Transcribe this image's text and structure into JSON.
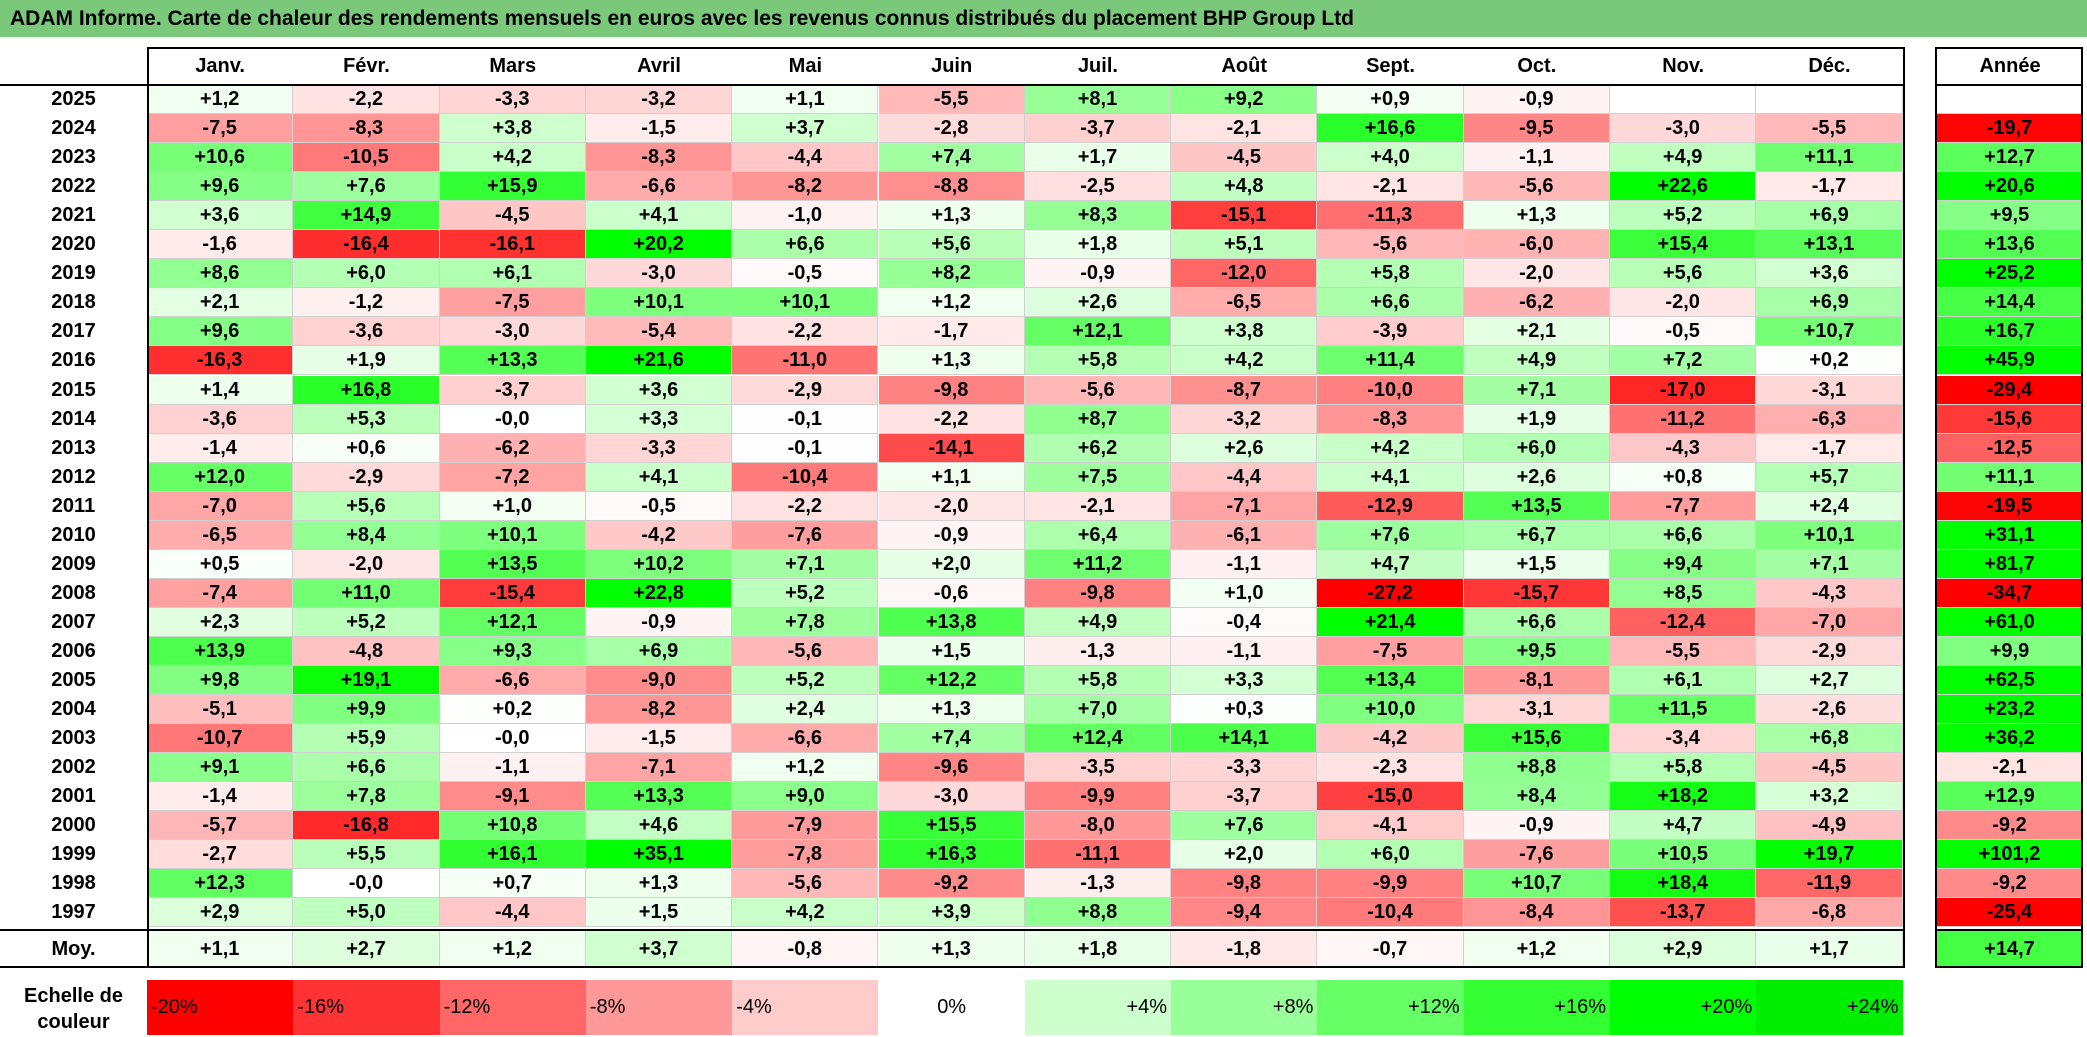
{
  "title": "ADAM Informe. Carte de chaleur des rendements mensuels en euros avec les revenus connus distribués du placement BHP Group Ltd",
  "chart_data": {
    "type": "heatmap",
    "title": "ADAM Informe. Carte de chaleur des rendements mensuels en euros avec les revenus connus distribués du placement BHP Group Ltd",
    "months": [
      "Janv.",
      "Févr.",
      "Mars",
      "Avril",
      "Mai",
      "Juin",
      "Juil.",
      "Août",
      "Sept.",
      "Oct.",
      "Nov.",
      "Déc."
    ],
    "year_header": "Année",
    "avg_label": "Moy.",
    "rows": [
      {
        "year": "2025",
        "values": [
          "+1,2",
          "-2,2",
          "-3,3",
          "-3,2",
          "+1,1",
          "-5,5",
          "+8,1",
          "+9,2",
          "+0,9",
          "-0,9",
          "",
          ""
        ],
        "annual": ""
      },
      {
        "year": "2024",
        "values": [
          "-7,5",
          "-8,3",
          "+3,8",
          "-1,5",
          "+3,7",
          "-2,8",
          "-3,7",
          "-2,1",
          "+16,6",
          "-9,5",
          "-3,0",
          "-5,5"
        ],
        "annual": "-19,7"
      },
      {
        "year": "2023",
        "values": [
          "+10,6",
          "-10,5",
          "+4,2",
          "-8,3",
          "-4,4",
          "+7,4",
          "+1,7",
          "-4,5",
          "+4,0",
          "-1,1",
          "+4,9",
          "+11,1"
        ],
        "annual": "+12,7"
      },
      {
        "year": "2022",
        "values": [
          "+9,6",
          "+7,6",
          "+15,9",
          "-6,6",
          "-8,2",
          "-8,8",
          "-2,5",
          "+4,8",
          "-2,1",
          "-5,6",
          "+22,6",
          "-1,7"
        ],
        "annual": "+20,6"
      },
      {
        "year": "2021",
        "values": [
          "+3,6",
          "+14,9",
          "-4,5",
          "+4,1",
          "-1,0",
          "+1,3",
          "+8,3",
          "-15,1",
          "-11,3",
          "+1,3",
          "+5,2",
          "+6,9"
        ],
        "annual": "+9,5"
      },
      {
        "year": "2020",
        "values": [
          "-1,6",
          "-16,4",
          "-16,1",
          "+20,2",
          "+6,6",
          "+5,6",
          "+1,8",
          "+5,1",
          "-5,6",
          "-6,0",
          "+15,4",
          "+13,1"
        ],
        "annual": "+13,6"
      },
      {
        "year": "2019",
        "values": [
          "+8,6",
          "+6,0",
          "+6,1",
          "-3,0",
          "-0,5",
          "+8,2",
          "-0,9",
          "-12,0",
          "+5,8",
          "-2,0",
          "+5,6",
          "+3,6"
        ],
        "annual": "+25,2"
      },
      {
        "year": "2018",
        "values": [
          "+2,1",
          "-1,2",
          "-7,5",
          "+10,1",
          "+10,1",
          "+1,2",
          "+2,6",
          "-6,5",
          "+6,6",
          "-6,2",
          "-2,0",
          "+6,9"
        ],
        "annual": "+14,4"
      },
      {
        "year": "2017",
        "values": [
          "+9,6",
          "-3,6",
          "-3,0",
          "-5,4",
          "-2,2",
          "-1,7",
          "+12,1",
          "+3,8",
          "-3,9",
          "+2,1",
          "-0,5",
          "+10,7"
        ],
        "annual": "+16,7"
      },
      {
        "year": "2016",
        "values": [
          "-16,3",
          "+1,9",
          "+13,3",
          "+21,6",
          "-11,0",
          "+1,3",
          "+5,8",
          "+4,2",
          "+11,4",
          "+4,9",
          "+7,2",
          "+0,2"
        ],
        "annual": "+45,9"
      },
      {
        "year": "2015",
        "values": [
          "+1,4",
          "+16,8",
          "-3,7",
          "+3,6",
          "-2,9",
          "-9,8",
          "-5,6",
          "-8,7",
          "-10,0",
          "+7,1",
          "-17,0",
          "-3,1"
        ],
        "annual": "-29,4"
      },
      {
        "year": "2014",
        "values": [
          "-3,6",
          "+5,3",
          "-0,0",
          "+3,3",
          "-0,1",
          "-2,2",
          "+8,7",
          "-3,2",
          "-8,3",
          "+1,9",
          "-11,2",
          "-6,3"
        ],
        "annual": "-15,6"
      },
      {
        "year": "2013",
        "values": [
          "-1,4",
          "+0,6",
          "-6,2",
          "-3,3",
          "-0,1",
          "-14,1",
          "+6,2",
          "+2,6",
          "+4,2",
          "+6,0",
          "-4,3",
          "-1,7"
        ],
        "annual": "-12,5"
      },
      {
        "year": "2012",
        "values": [
          "+12,0",
          "-2,9",
          "-7,2",
          "+4,1",
          "-10,4",
          "+1,1",
          "+7,5",
          "-4,4",
          "+4,1",
          "+2,6",
          "+0,8",
          "+5,7"
        ],
        "annual": "+11,1"
      },
      {
        "year": "2011",
        "values": [
          "-7,0",
          "+5,6",
          "+1,0",
          "-0,5",
          "-2,2",
          "-2,0",
          "-2,1",
          "-7,1",
          "-12,9",
          "+13,5",
          "-7,7",
          "+2,4"
        ],
        "annual": "-19,5"
      },
      {
        "year": "2010",
        "values": [
          "-6,5",
          "+8,4",
          "+10,1",
          "-4,2",
          "-7,6",
          "-0,9",
          "+6,4",
          "-6,1",
          "+7,6",
          "+6,7",
          "+6,6",
          "+10,1"
        ],
        "annual": "+31,1"
      },
      {
        "year": "2009",
        "values": [
          "+0,5",
          "-2,0",
          "+13,5",
          "+10,2",
          "+7,1",
          "+2,0",
          "+11,2",
          "-1,1",
          "+4,7",
          "+1,5",
          "+9,4",
          "+7,1"
        ],
        "annual": "+81,7"
      },
      {
        "year": "2008",
        "values": [
          "-7,4",
          "+11,0",
          "-15,4",
          "+22,8",
          "+5,2",
          "-0,6",
          "-9,8",
          "+1,0",
          "-27,2",
          "-15,7",
          "+8,5",
          "-4,3"
        ],
        "annual": "-34,7"
      },
      {
        "year": "2007",
        "values": [
          "+2,3",
          "+5,2",
          "+12,1",
          "-0,9",
          "+7,8",
          "+13,8",
          "+4,9",
          "-0,4",
          "+21,4",
          "+6,6",
          "-12,4",
          "-7,0"
        ],
        "annual": "+61,0"
      },
      {
        "year": "2006",
        "values": [
          "+13,9",
          "-4,8",
          "+9,3",
          "+6,9",
          "-5,6",
          "+1,5",
          "-1,3",
          "-1,1",
          "-7,5",
          "+9,5",
          "-5,5",
          "-2,9"
        ],
        "annual": "+9,9"
      },
      {
        "year": "2005",
        "values": [
          "+9,8",
          "+19,1",
          "-6,6",
          "-9,0",
          "+5,2",
          "+12,2",
          "+5,8",
          "+3,3",
          "+13,4",
          "-8,1",
          "+6,1",
          "+2,7"
        ],
        "annual": "+62,5"
      },
      {
        "year": "2004",
        "values": [
          "-5,1",
          "+9,9",
          "+0,2",
          "-8,2",
          "+2,4",
          "+1,3",
          "+7,0",
          "+0,3",
          "+10,0",
          "-3,1",
          "+11,5",
          "-2,6"
        ],
        "annual": "+23,2"
      },
      {
        "year": "2003",
        "values": [
          "-10,7",
          "+5,9",
          "-0,0",
          "-1,5",
          "-6,6",
          "+7,4",
          "+12,4",
          "+14,1",
          "-4,2",
          "+15,6",
          "-3,4",
          "+6,8"
        ],
        "annual": "+36,2"
      },
      {
        "year": "2002",
        "values": [
          "+9,1",
          "+6,6",
          "-1,1",
          "-7,1",
          "+1,2",
          "-9,6",
          "-3,5",
          "-3,3",
          "-2,3",
          "+8,8",
          "+5,8",
          "-4,5"
        ],
        "annual": "-2,1"
      },
      {
        "year": "2001",
        "values": [
          "-1,4",
          "+7,8",
          "-9,1",
          "+13,3",
          "+9,0",
          "-3,0",
          "-9,9",
          "-3,7",
          "-15,0",
          "+8,4",
          "+18,2",
          "+3,2"
        ],
        "annual": "+12,9"
      },
      {
        "year": "2000",
        "values": [
          "-5,7",
          "-16,8",
          "+10,8",
          "+4,6",
          "-7,9",
          "+15,5",
          "-8,0",
          "+7,6",
          "-4,1",
          "-0,9",
          "+4,7",
          "-4,9"
        ],
        "annual": "-9,2"
      },
      {
        "year": "1999",
        "values": [
          "-2,7",
          "+5,5",
          "+16,1",
          "+35,1",
          "-7,8",
          "+16,3",
          "-11,1",
          "+2,0",
          "+6,0",
          "-7,6",
          "+10,5",
          "+19,7"
        ],
        "annual": "+101,2"
      },
      {
        "year": "1998",
        "values": [
          "+12,3",
          "-0,0",
          "+0,7",
          "+1,3",
          "-5,6",
          "-9,2",
          "-1,3",
          "-9,8",
          "-9,9",
          "+10,7",
          "+18,4",
          "-11,9"
        ],
        "annual": "-9,2"
      },
      {
        "year": "1997",
        "values": [
          "+2,9",
          "+5,0",
          "-4,4",
          "+1,5",
          "+4,2",
          "+3,9",
          "+8,8",
          "-9,4",
          "-10,4",
          "-8,4",
          "-13,7",
          "-6,8"
        ],
        "annual": "-25,4"
      }
    ],
    "averages": [
      "+1,1",
      "+2,7",
      "+1,2",
      "+3,7",
      "-0,8",
      "+1,3",
      "+1,8",
      "-1,8",
      "-0,7",
      "+1,2",
      "+2,9",
      "+1,7"
    ],
    "average_annual": "+14,7",
    "scale_label": "Echelle de couleur",
    "scale": [
      {
        "label": "-20%",
        "value": -20,
        "color": "#ff0000"
      },
      {
        "label": "-16%",
        "value": -16,
        "color": "#ff3333"
      },
      {
        "label": "-12%",
        "value": -12,
        "color": "#ff6666"
      },
      {
        "label": "-8%",
        "value": -8,
        "color": "#ff9999"
      },
      {
        "label": "-4%",
        "value": -4,
        "color": "#ffcccc"
      },
      {
        "label": "0%",
        "value": 0,
        "color": "#ffffff"
      },
      {
        "label": "+4%",
        "value": 4,
        "color": "#ccffcc"
      },
      {
        "label": "+8%",
        "value": 8,
        "color": "#99ff99"
      },
      {
        "label": "+12%",
        "value": 12,
        "color": "#66ff66"
      },
      {
        "label": "+16%",
        "value": 16,
        "color": "#33ff33"
      },
      {
        "label": "+20%",
        "value": 20,
        "color": "#00ff00"
      },
      {
        "label": "+24%",
        "value": 24,
        "color": "#00ee00"
      }
    ],
    "colors": {
      "negative_max": "#ff0000",
      "neutral": "#ffffff",
      "positive_max": "#00ff00",
      "title_bg": "#7ac97a"
    }
  }
}
